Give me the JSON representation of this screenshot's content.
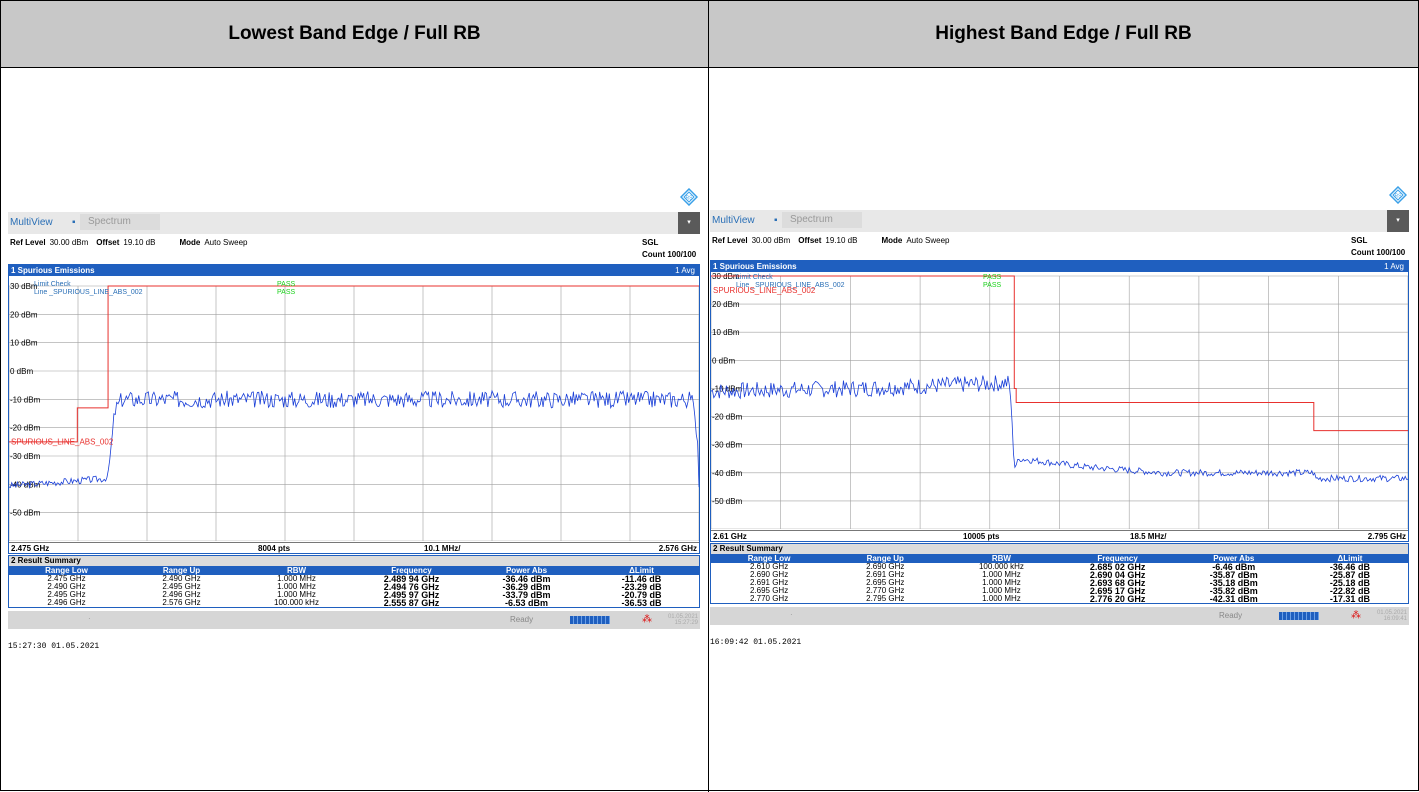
{
  "headers": {
    "left": "Lowest Band Edge / Full RB",
    "right": "Highest Band Edge / Full RB"
  },
  "colors": {
    "header_bg": "#c8c8c8",
    "trace": "#1a3fd8",
    "limit": "#e8312e",
    "pass": "#19d119",
    "accent": "#1f5fbf"
  },
  "icons": {
    "logo": "rohde-schwarz-logo-icon",
    "dropdown": "dropdown-arrow-icon",
    "network": "network-icon"
  },
  "panels": [
    {
      "multiview": "MultiView",
      "spectrum_tab": "Spectrum",
      "ref_level_label": "Ref Level",
      "ref_level": "30.00 dBm",
      "offset_label": "Offset",
      "offset": "19.10 dB",
      "mode_label": "Mode",
      "mode": "Auto Sweep",
      "sgl": "SGL",
      "count": "Count 100/100",
      "trace_title": "1 Spurious Emissions",
      "avg": "1 Avg",
      "limit_check_label": "Limit Check",
      "limit_check_value": "PASS",
      "limit_line_label": "Line _SPURIOUS_LINE_ABS_002",
      "limit_line_value": "PASS",
      "limit_line_tag": "SPURIOUS_LINE_ABS_002",
      "y_ticks": [
        "30 dBm",
        "20 dBm",
        "10 dBm",
        "0 dBm",
        "-10 dBm",
        "-20 dBm",
        "-30 dBm",
        "-40 dBm",
        "-50 dBm"
      ],
      "x_start": "2.475 GHz",
      "pts": "8004 pts",
      "span_div": "10.1 MHz/",
      "x_stop": "2.576 GHz",
      "result_title": "2 Result Summary",
      "columns": [
        "Range Low",
        "Range Up",
        "RBW",
        "Frequency",
        "Power Abs",
        "ΔLimit"
      ],
      "rows": [
        [
          "2.475 GHz",
          "2.490 GHz",
          "1.000 MHz",
          "2.489 94 GHz",
          "-36.46 dBm",
          "-11.46 dB"
        ],
        [
          "2.490 GHz",
          "2.495 GHz",
          "1.000 MHz",
          "2.494 76 GHz",
          "-36.29 dBm",
          "-23.29 dB"
        ],
        [
          "2.495 GHz",
          "2.496 GHz",
          "1.000 MHz",
          "2.495 97 GHz",
          "-33.79 dBm",
          "-20.79 dB"
        ],
        [
          "2.496 GHz",
          "2.576 GHz",
          "100.000 kHz",
          "2.555 87 GHz",
          "-6.53 dBm",
          "-36.53 dB"
        ]
      ],
      "ready": "Ready",
      "status_date": "01.05.2021",
      "status_time": "15:27:29",
      "timestamp": "15:27:30  01.05.2021"
    },
    {
      "multiview": "MultiView",
      "spectrum_tab": "Spectrum",
      "ref_level_label": "Ref Level",
      "ref_level": "30.00 dBm",
      "offset_label": "Offset",
      "offset": "19.10 dB",
      "mode_label": "Mode",
      "mode": "Auto Sweep",
      "sgl": "SGL",
      "count": "Count 100/100",
      "trace_title": "1 Spurious Emissions",
      "avg": "1 Avg",
      "limit_check_label": "Limit Check",
      "limit_check_value": "PASS",
      "limit_line_label": "Line _SPURIOUS_LINE_ABS_002",
      "limit_line_value": "PASS",
      "limit_line_tag": "SPURIOUS_LINE_ABS_002",
      "y_ticks": [
        "30 dBm",
        "20 dBm",
        "10 dBm",
        "0 dBm",
        "-10 dBm",
        "-20 dBm",
        "-30 dBm",
        "-40 dBm",
        "-50 dBm"
      ],
      "x_start": "2.61 GHz",
      "pts": "10005 pts",
      "span_div": "18.5 MHz/",
      "x_stop": "2.795 GHz",
      "result_title": "2 Result Summary",
      "columns": [
        "Range Low",
        "Range Up",
        "RBW",
        "Frequency",
        "Power Abs",
        "ΔLimit"
      ],
      "rows": [
        [
          "2.610 GHz",
          "2.690 GHz",
          "100.000 kHz",
          "2.685 02 GHz",
          "-6.46 dBm",
          "-36.46 dB"
        ],
        [
          "2.690 GHz",
          "2.691 GHz",
          "1.000 MHz",
          "2.690 04 GHz",
          "-35.87 dBm",
          "-25.87 dB"
        ],
        [
          "2.691 GHz",
          "2.695 GHz",
          "1.000 MHz",
          "2.693 68 GHz",
          "-35.18 dBm",
          "-25.18 dB"
        ],
        [
          "2.695 GHz",
          "2.770 GHz",
          "1.000 MHz",
          "2.695 17 GHz",
          "-35.82 dBm",
          "-22.82 dB"
        ],
        [
          "2.770 GHz",
          "2.795 GHz",
          "1.000 MHz",
          "2.776 20 GHz",
          "-42.31 dBm",
          "-17.31 dB"
        ]
      ],
      "ready": "Ready",
      "status_date": "01.05.2021",
      "status_time": "16:09:41",
      "timestamp": "16:09:42  01.05.2021"
    }
  ],
  "chart_data": [
    {
      "type": "line",
      "title": "1 Spurious Emissions",
      "xlim_ghz": [
        2.475,
        2.576
      ],
      "ylim_dbm": [
        -60,
        30
      ],
      "grid": true,
      "series": [
        {
          "name": "Trace",
          "x": [
            2.475,
            2.489,
            2.4895,
            2.4905,
            2.4915,
            2.5,
            2.55,
            2.575,
            2.5758,
            2.576
          ],
          "values": [
            -40.5,
            -38,
            -37,
            -14,
            -10,
            -10,
            -10,
            -10,
            -25,
            -40
          ]
        },
        {
          "name": "SPURIOUS_LINE_ABS_002",
          "x": [
            2.475,
            2.485,
            2.485,
            2.4895,
            2.4895,
            2.576
          ],
          "values": [
            -25,
            -25,
            -13,
            -13,
            30,
            30
          ]
        }
      ]
    },
    {
      "type": "line",
      "title": "1 Spurious Emissions",
      "xlim_ghz": [
        2.61,
        2.795
      ],
      "ylim_dbm": [
        -60,
        30
      ],
      "grid": true,
      "series": [
        {
          "name": "Trace",
          "x": [
            2.61,
            2.65,
            2.689,
            2.6895,
            2.6905,
            2.692,
            2.71,
            2.73,
            2.77,
            2.7705,
            2.795
          ],
          "values": [
            -11,
            -10,
            -8,
            -12,
            -38,
            -35,
            -38,
            -40,
            -40,
            -42,
            -42
          ]
        },
        {
          "name": "SPURIOUS_LINE_ABS_002",
          "x": [
            2.61,
            2.6905,
            2.6905,
            2.691,
            2.691,
            2.77,
            2.77,
            2.795
          ],
          "values": [
            30,
            30,
            -10,
            -10,
            -15,
            -15,
            -25,
            -25
          ]
        }
      ]
    }
  ]
}
